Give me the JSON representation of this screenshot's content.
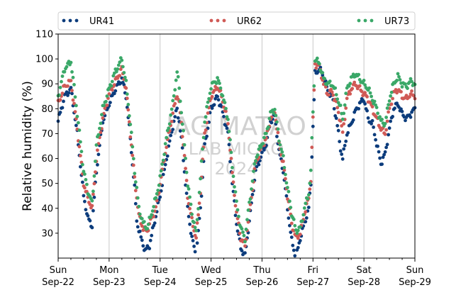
{
  "chart_data": {
    "type": "scatter",
    "title": "",
    "xlabel": "",
    "ylabel": "Relative humidity (%)",
    "ylim": [
      20,
      110
    ],
    "yticks": [
      30,
      40,
      50,
      60,
      70,
      80,
      90,
      100,
      110
    ],
    "xlim": [
      0,
      168
    ],
    "xticks": [
      {
        "day": "Sun",
        "date": "Sep-22",
        "hour": 0
      },
      {
        "day": "Mon",
        "date": "Sep-23",
        "hour": 24
      },
      {
        "day": "Tue",
        "date": "Sep-24",
        "hour": 48
      },
      {
        "day": "Wed",
        "date": "Sep-25",
        "hour": 72
      },
      {
        "day": "Thu",
        "date": "Sep-26",
        "hour": 96
      },
      {
        "day": "Fri",
        "date": "Sep-27",
        "hour": 120
      },
      {
        "day": "Sat",
        "date": "Sep-28",
        "hour": 144
      },
      {
        "day": "Sun",
        "date": "Sep-29",
        "hour": 168
      }
    ],
    "grid": "vertical",
    "legend": "top",
    "watermark": [
      "JAG MATAO",
      "LAB MICRO",
      "2024"
    ],
    "series": [
      {
        "name": "UR41",
        "color": "#0c3c7c",
        "keypoints": [
          [
            0,
            75
          ],
          [
            3,
            85
          ],
          [
            6,
            88
          ],
          [
            9,
            70
          ],
          [
            12,
            45
          ],
          [
            14,
            36
          ],
          [
            16,
            33
          ],
          [
            18,
            55
          ],
          [
            21,
            75
          ],
          [
            24,
            82
          ],
          [
            27,
            88
          ],
          [
            30,
            92
          ],
          [
            32,
            85
          ],
          [
            34,
            68
          ],
          [
            36,
            48
          ],
          [
            37,
            35
          ],
          [
            39,
            28
          ],
          [
            41,
            23
          ],
          [
            43,
            25
          ],
          [
            45,
            33
          ],
          [
            48,
            45
          ],
          [
            51,
            60
          ],
          [
            54,
            73
          ],
          [
            56,
            80
          ],
          [
            57,
            75
          ],
          [
            59,
            60
          ],
          [
            61,
            40
          ],
          [
            63,
            28
          ],
          [
            65,
            21
          ],
          [
            67,
            40
          ],
          [
            69,
            65
          ],
          [
            72,
            80
          ],
          [
            75,
            85
          ],
          [
            77,
            80
          ],
          [
            80,
            70
          ],
          [
            82,
            50
          ],
          [
            84,
            34
          ],
          [
            86,
            24
          ],
          [
            88,
            21
          ],
          [
            90,
            35
          ],
          [
            93,
            55
          ],
          [
            96,
            62
          ],
          [
            98,
            66
          ],
          [
            100,
            75
          ],
          [
            102,
            77
          ],
          [
            104,
            63
          ],
          [
            106,
            55
          ],
          [
            108,
            40
          ],
          [
            110,
            27
          ],
          [
            112,
            20
          ],
          [
            114,
            28
          ],
          [
            116,
            34
          ],
          [
            118,
            40
          ],
          [
            119,
            50
          ],
          [
            120,
            73
          ],
          [
            121,
            94
          ],
          [
            123,
            96
          ],
          [
            125,
            93
          ],
          [
            127,
            87
          ],
          [
            129,
            85
          ],
          [
            131,
            76
          ],
          [
            133,
            64
          ],
          [
            134,
            60
          ],
          [
            136,
            70
          ],
          [
            138,
            74
          ],
          [
            140,
            79
          ],
          [
            142,
            82
          ],
          [
            144,
            84
          ],
          [
            146,
            76
          ],
          [
            148,
            74
          ],
          [
            150,
            66
          ],
          [
            152,
            58
          ],
          [
            154,
            62
          ],
          [
            156,
            72
          ],
          [
            158,
            80
          ],
          [
            160,
            82
          ],
          [
            162,
            78
          ],
          [
            164,
            76
          ],
          [
            166,
            78
          ],
          [
            168,
            80
          ]
        ]
      },
      {
        "name": "UR62",
        "color": "#d05a56",
        "keypoints": [
          [
            0,
            82
          ],
          [
            3,
            89
          ],
          [
            6,
            91
          ],
          [
            9,
            72
          ],
          [
            12,
            50
          ],
          [
            14,
            44
          ],
          [
            16,
            40
          ],
          [
            18,
            60
          ],
          [
            21,
            76
          ],
          [
            24,
            86
          ],
          [
            27,
            91
          ],
          [
            30,
            96
          ],
          [
            32,
            88
          ],
          [
            34,
            70
          ],
          [
            36,
            52
          ],
          [
            38,
            37
          ],
          [
            40,
            32
          ],
          [
            42,
            31
          ],
          [
            44,
            36
          ],
          [
            46,
            40
          ],
          [
            48,
            50
          ],
          [
            51,
            65
          ],
          [
            54,
            78
          ],
          [
            56,
            86
          ],
          [
            57,
            82
          ],
          [
            59,
            66
          ],
          [
            61,
            45
          ],
          [
            63,
            35
          ],
          [
            65,
            28
          ],
          [
            67,
            47
          ],
          [
            69,
            70
          ],
          [
            72,
            85
          ],
          [
            75,
            89
          ],
          [
            77,
            85
          ],
          [
            80,
            74
          ],
          [
            82,
            54
          ],
          [
            84,
            38
          ],
          [
            86,
            28
          ],
          [
            88,
            25
          ],
          [
            90,
            38
          ],
          [
            93,
            58
          ],
          [
            96,
            65
          ],
          [
            98,
            68
          ],
          [
            100,
            76
          ],
          [
            102,
            79
          ],
          [
            104,
            66
          ],
          [
            106,
            58
          ],
          [
            108,
            45
          ],
          [
            110,
            34
          ],
          [
            112,
            28
          ],
          [
            114,
            30
          ],
          [
            116,
            38
          ],
          [
            118,
            44
          ],
          [
            119,
            52
          ],
          [
            120,
            76
          ],
          [
            121,
            98
          ],
          [
            123,
            97
          ],
          [
            125,
            90
          ],
          [
            127,
            86
          ],
          [
            129,
            87
          ],
          [
            131,
            82
          ],
          [
            133,
            75
          ],
          [
            134,
            70
          ],
          [
            136,
            84
          ],
          [
            138,
            88
          ],
          [
            140,
            90
          ],
          [
            142,
            88
          ],
          [
            144,
            86
          ],
          [
            146,
            84
          ],
          [
            148,
            80
          ],
          [
            150,
            76
          ],
          [
            152,
            72
          ],
          [
            154,
            70
          ],
          [
            156,
            80
          ],
          [
            158,
            86
          ],
          [
            160,
            88
          ],
          [
            162,
            85
          ],
          [
            164,
            84
          ],
          [
            166,
            86
          ],
          [
            168,
            85
          ]
        ]
      },
      {
        "name": "UR73",
        "color": "#3aa868",
        "keypoints": [
          [
            0,
            85
          ],
          [
            3,
            96
          ],
          [
            6,
            99
          ],
          [
            9,
            78
          ],
          [
            12,
            55
          ],
          [
            14,
            47
          ],
          [
            16,
            42
          ],
          [
            18,
            65
          ],
          [
            21,
            80
          ],
          [
            24,
            88
          ],
          [
            27,
            95
          ],
          [
            30,
            100
          ],
          [
            32,
            90
          ],
          [
            34,
            74
          ],
          [
            36,
            55
          ],
          [
            38,
            40
          ],
          [
            40,
            34
          ],
          [
            42,
            32
          ],
          [
            44,
            38
          ],
          [
            46,
            44
          ],
          [
            48,
            52
          ],
          [
            51,
            68
          ],
          [
            54,
            82
          ],
          [
            56,
            95
          ],
          [
            57,
            88
          ],
          [
            59,
            70
          ],
          [
            61,
            50
          ],
          [
            63,
            38
          ],
          [
            65,
            30
          ],
          [
            67,
            52
          ],
          [
            69,
            75
          ],
          [
            72,
            89
          ],
          [
            75,
            92
          ],
          [
            77,
            87
          ],
          [
            80,
            76
          ],
          [
            82,
            57
          ],
          [
            84,
            42
          ],
          [
            86,
            32
          ],
          [
            88,
            28
          ],
          [
            90,
            42
          ],
          [
            93,
            60
          ],
          [
            96,
            66
          ],
          [
            98,
            70
          ],
          [
            100,
            78
          ],
          [
            102,
            80
          ],
          [
            104,
            68
          ],
          [
            106,
            60
          ],
          [
            108,
            48
          ],
          [
            110,
            38
          ],
          [
            112,
            31
          ],
          [
            114,
            32
          ],
          [
            116,
            40
          ],
          [
            118,
            46
          ],
          [
            119,
            55
          ],
          [
            120,
            79
          ],
          [
            121,
            100
          ],
          [
            123,
            98
          ],
          [
            125,
            92
          ],
          [
            127,
            90
          ],
          [
            129,
            90
          ],
          [
            131,
            86
          ],
          [
            133,
            80
          ],
          [
            134,
            76
          ],
          [
            136,
            88
          ],
          [
            138,
            92
          ],
          [
            140,
            94
          ],
          [
            142,
            92
          ],
          [
            144,
            90
          ],
          [
            146,
            88
          ],
          [
            148,
            84
          ],
          [
            150,
            80
          ],
          [
            152,
            75
          ],
          [
            154,
            74
          ],
          [
            156,
            84
          ],
          [
            158,
            90
          ],
          [
            160,
            93
          ],
          [
            162,
            90
          ],
          [
            164,
            89
          ],
          [
            166,
            91
          ],
          [
            168,
            90
          ]
        ]
      }
    ]
  }
}
